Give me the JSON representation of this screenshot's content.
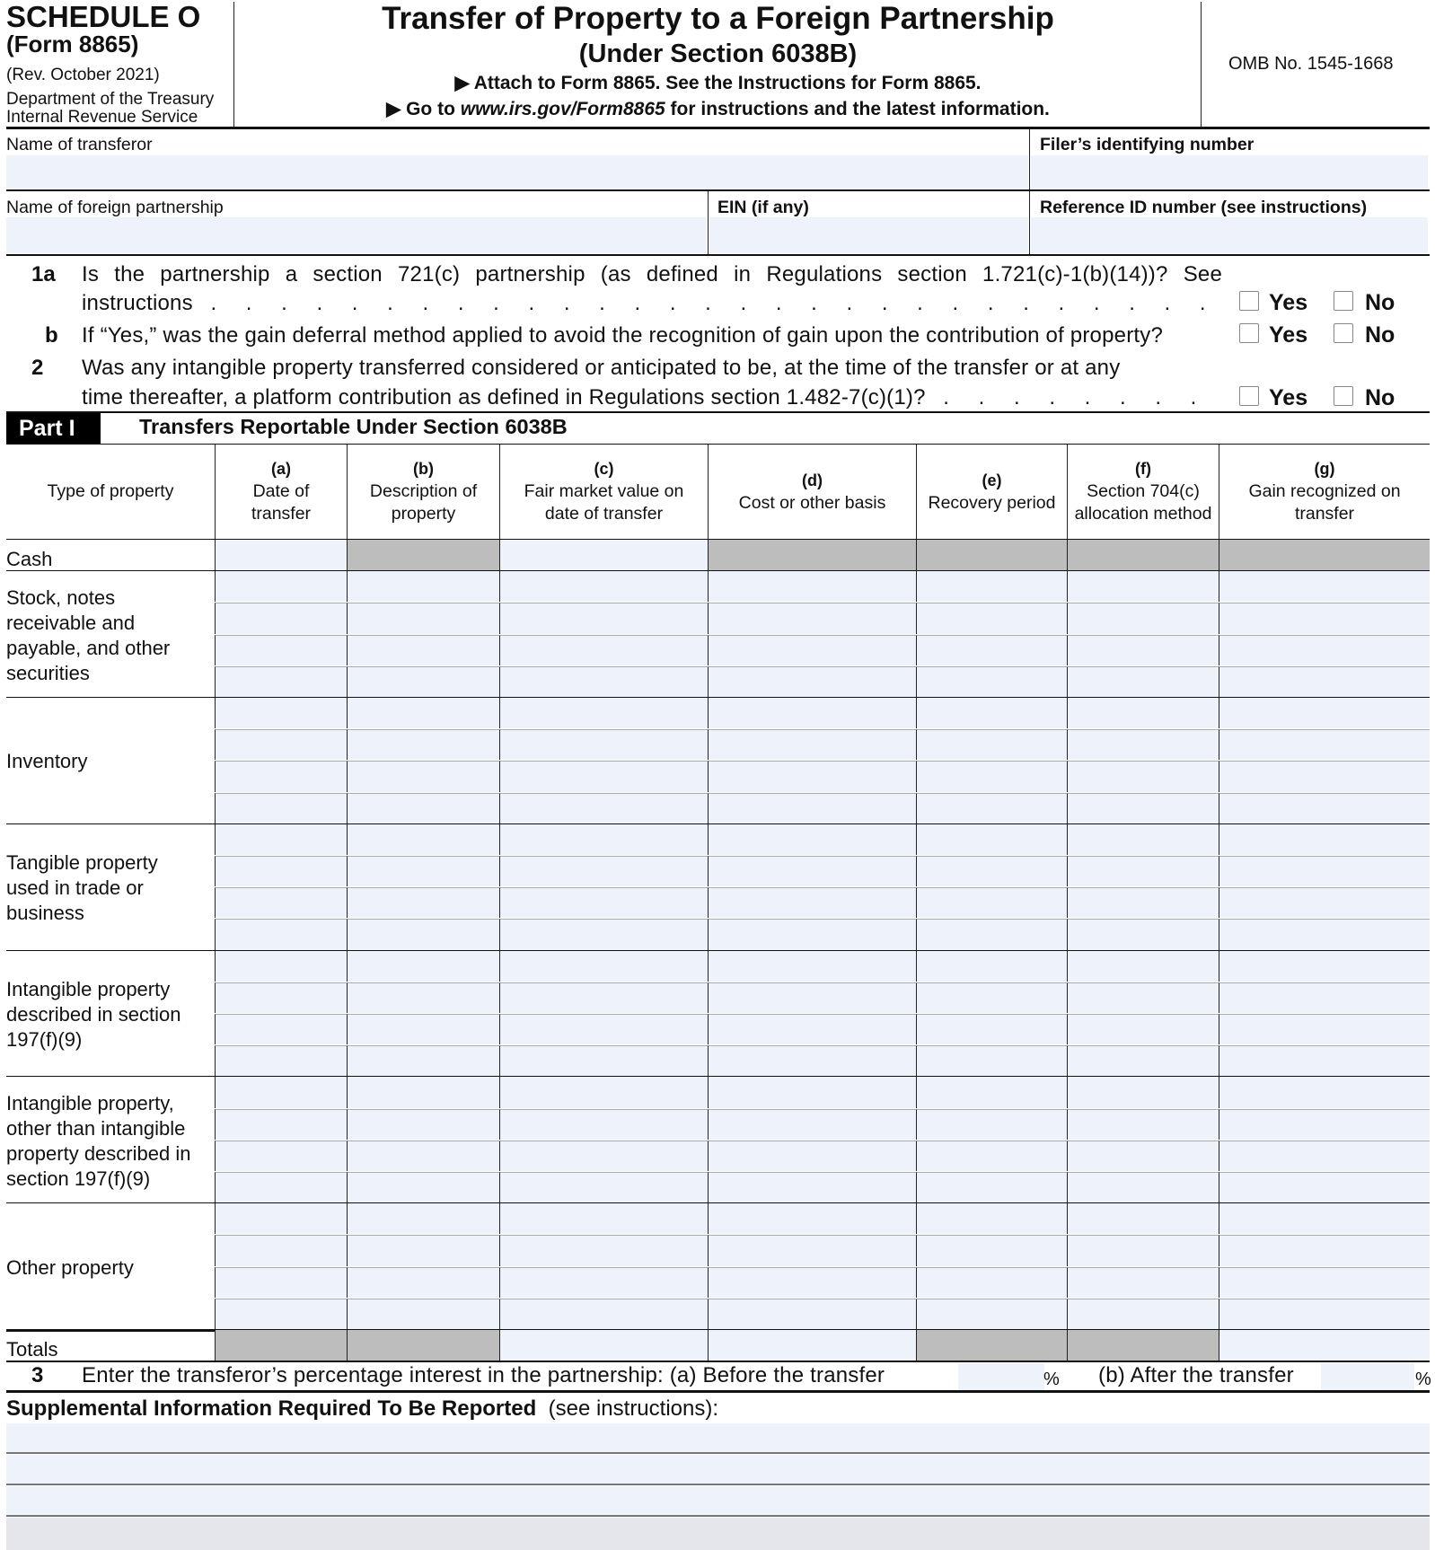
{
  "header": {
    "schedule": "SCHEDULE O",
    "form": "(Form 8865)",
    "revision": "(Rev. October 2021)",
    "dept1": "Department of the Treasury",
    "dept2": "Internal Revenue Service",
    "title": "Transfer of Property to a Foreign Partnership",
    "subtitle": "(Under Section 6038B)",
    "attach": "Attach to Form 8865. See the Instructions for Form 8865.",
    "goto_prefix": "Go to ",
    "goto_url": "www.irs.gov/Form8865",
    "goto_suffix": " for instructions and the latest information.",
    "omb": "OMB No. 1545-1668"
  },
  "fields": {
    "transferor_label": "Name of transferor",
    "filer_id_label": "Filer’s identifying number",
    "partnership_label": "Name of foreign partnership",
    "ein_label": "EIN (if any)",
    "reference_label": "Reference ID number (see instructions)"
  },
  "questions": [
    {
      "num": "1a",
      "line1": "Is the partnership a section 721(c) partnership (as defined in Regulations section 1.721(c)-1(b)(14))? See",
      "line2": "instructions"
    },
    {
      "num": "b",
      "line1": "If “Yes,” was the gain deferral method applied to avoid the recognition of gain upon the contribution of property?"
    },
    {
      "num": "2",
      "line1": "Was any intangible property transferred considered or anticipated to be, at the time of the transfer or at any",
      "line2": "time thereafter, a platform contribution as defined in Regulations section 1.482-7(c)(1)?"
    }
  ],
  "yes_label": "Yes",
  "no_label": "No",
  "part": {
    "badge": "Part I",
    "title": "Transfers Reportable Under Section 6038B"
  },
  "table": {
    "columns": [
      {
        "letter": "",
        "text": "Type of property"
      },
      {
        "letter": "(a)",
        "text": "Date of transfer"
      },
      {
        "letter": "(b)",
        "text": "Description of property"
      },
      {
        "letter": "(c)",
        "text": "Fair market value on date of transfer"
      },
      {
        "letter": "(d)",
        "text": "Cost or other basis"
      },
      {
        "letter": "(e)",
        "text": "Recovery period"
      },
      {
        "letter": "(f)",
        "text": "Section 704(c) allocation method"
      },
      {
        "letter": "(g)",
        "text": "Gain recognized on transfer"
      }
    ],
    "rows": [
      {
        "label": "Cash",
        "lines": 1
      },
      {
        "label": "Stock, notes receivable and payable, and other securities",
        "lines": 4
      },
      {
        "label": "Inventory",
        "lines": 4
      },
      {
        "label": "Tangible property used in trade or business",
        "lines": 4
      },
      {
        "label": "Intangible property described in section 197(f)(9)",
        "lines": 4
      },
      {
        "label": "Intangible property, other than intangible property described in section 197(f)(9)",
        "lines": 4
      },
      {
        "label": "Other property",
        "lines": 4
      },
      {
        "label": "Totals",
        "lines": 1
      }
    ]
  },
  "line3": {
    "num": "3",
    "text": "Enter the transferor’s percentage interest in the partnership: (a) Before the transfer",
    "pct": "%",
    "after": "(b) After the transfer"
  },
  "supplemental": {
    "title": "Supplemental Information Required To Be Reported",
    "note": "(see instructions):"
  }
}
